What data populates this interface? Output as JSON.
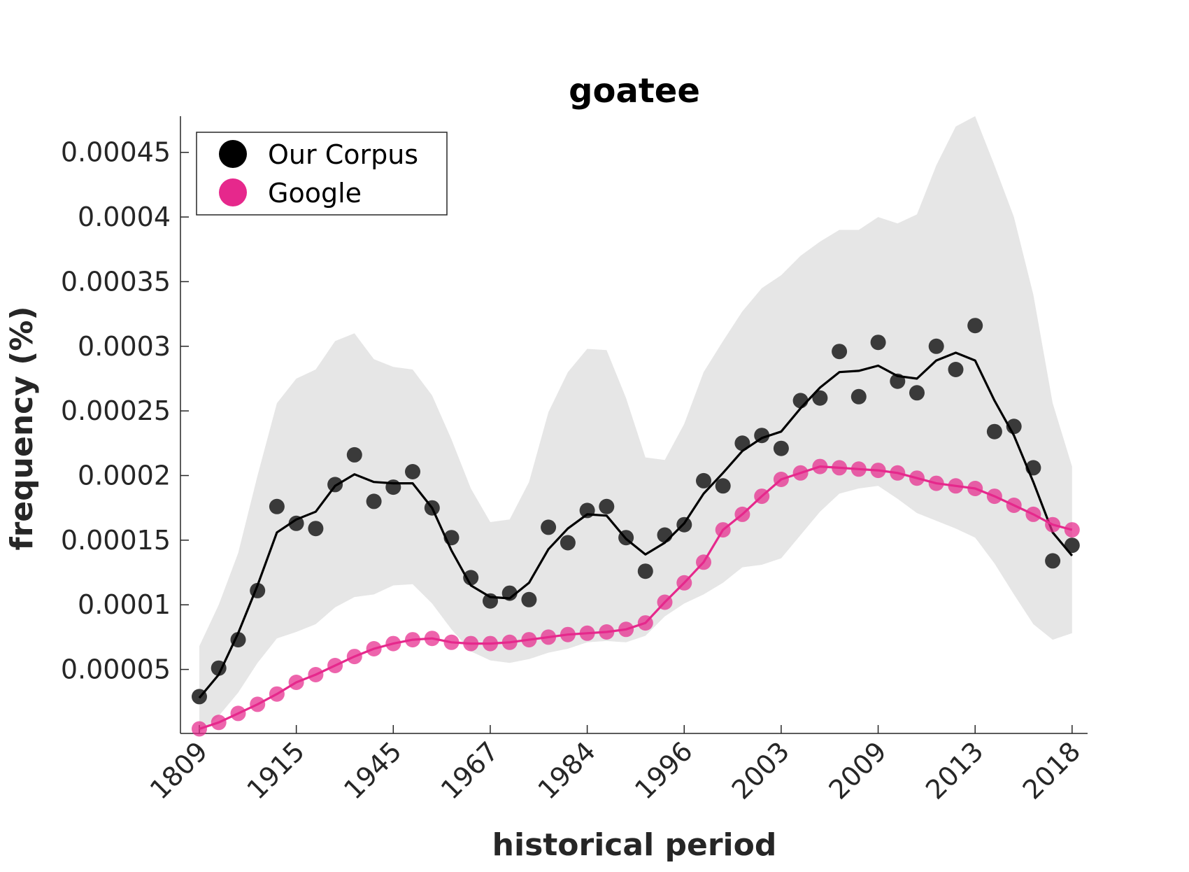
{
  "chart_data": {
    "type": "line",
    "title": "goatee",
    "xlabel": "historical period",
    "ylabel": "frequency (%)",
    "x_tick_labels": [
      "1809",
      "1915",
      "1945",
      "1967",
      "1984",
      "1996",
      "2003",
      "2009",
      "2013",
      "2018"
    ],
    "y_ticks": [
      5e-05,
      0.0001,
      0.00015,
      0.0002,
      0.00025,
      0.0003,
      0.00035,
      0.0004,
      0.00045
    ],
    "y_tick_labels": [
      "0.00005",
      "0.0001",
      "0.00015",
      "0.0002",
      "0.00025",
      "0.0003",
      "0.00035",
      "0.0004",
      "0.00045"
    ],
    "ylim": [
      5e-07,
      0.000478
    ],
    "legend_position": "top-left",
    "grid": false,
    "colors": {
      "corpus": "#3a3a3a",
      "corpus_line": "#000000",
      "google": "#e6288c",
      "band": "#e6e6e6"
    },
    "series": [
      {
        "name": "Our Corpus",
        "style": "markers-with-smoothed-line",
        "points": [
          2.9e-05,
          5.1e-05,
          7.3e-05,
          0.000111,
          0.000176,
          0.000163,
          0.000159,
          0.000193,
          0.000216,
          0.00018,
          0.000191,
          0.000203,
          0.000175,
          0.000152,
          0.000121,
          0.000103,
          0.000109,
          0.000104,
          0.00016,
          0.000148,
          0.000173,
          0.000176,
          0.000152,
          0.000126,
          0.000154,
          0.000162,
          0.000196,
          0.000192,
          0.000225,
          0.000231,
          0.000221,
          0.000258,
          0.00026,
          0.000296,
          0.000261,
          0.000303,
          0.000273,
          0.000264,
          0.0003,
          0.000282,
          0.000316,
          0.000234,
          0.000238,
          0.000206,
          0.000134,
          0.000146
        ],
        "trend": [
          2.8e-05,
          4.6e-05,
          7.8e-05,
          0.000115,
          0.000156,
          0.000166,
          0.000172,
          0.000192,
          0.000201,
          0.000195,
          0.000194,
          0.000194,
          0.000175,
          0.000142,
          0.000115,
          0.000106,
          0.000105,
          0.000117,
          0.000143,
          0.000159,
          0.00017,
          0.000169,
          0.000151,
          0.000139,
          0.000148,
          0.000163,
          0.000186,
          0.000202,
          0.000219,
          0.000229,
          0.000234,
          0.000252,
          0.000268,
          0.00028,
          0.000281,
          0.000285,
          0.000277,
          0.000275,
          0.000289,
          0.000295,
          0.000289,
          0.000258,
          0.000231,
          0.000195,
          0.000156,
          0.000138
        ]
      },
      {
        "name": "Google",
        "style": "markers-with-line",
        "points": [
          4e-06,
          9e-06,
          1.6e-05,
          2.3e-05,
          3.1e-05,
          4e-05,
          4.6e-05,
          5.3e-05,
          6e-05,
          6.6e-05,
          7e-05,
          7.3e-05,
          7.4e-05,
          7.1e-05,
          7e-05,
          7e-05,
          7.1e-05,
          7.3e-05,
          7.5e-05,
          7.7e-05,
          7.8e-05,
          7.9e-05,
          8.1e-05,
          8.6e-05,
          0.000102,
          0.000117,
          0.000133,
          0.000158,
          0.00017,
          0.000184,
          0.000197,
          0.000202,
          0.000207,
          0.000206,
          0.000205,
          0.000204,
          0.000202,
          0.000198,
          0.000194,
          0.000192,
          0.00019,
          0.000184,
          0.000177,
          0.00017,
          0.000162,
          0.000158
        ]
      }
    ],
    "confidence_band": {
      "upper": [
        6.8e-05,
        0.0001,
        0.00014,
        0.0002,
        0.000256,
        0.000275,
        0.000282,
        0.000304,
        0.00031,
        0.00029,
        0.000284,
        0.000282,
        0.000262,
        0.000228,
        0.00019,
        0.000164,
        0.000166,
        0.000195,
        0.000249,
        0.00028,
        0.000298,
        0.000297,
        0.00026,
        0.000214,
        0.000212,
        0.00024,
        0.00028,
        0.000304,
        0.000327,
        0.000345,
        0.000355,
        0.00037,
        0.000381,
        0.00039,
        0.00039,
        0.0004,
        0.000395,
        0.000402,
        0.00044,
        0.00047,
        0.000478,
        0.00044,
        0.0004,
        0.00034,
        0.000256,
        0.000207
      ],
      "lower": [
        1e-06,
        1.4e-05,
        3.2e-05,
        5.5e-05,
        7.4e-05,
        7.9e-05,
        8.5e-05,
        9.8e-05,
        0.000106,
        0.000108,
        0.000115,
        0.000116,
        0.000101,
        8.1e-05,
        6.4e-05,
        5.7e-05,
        5.5e-05,
        5.8e-05,
        6.3e-05,
        6.6e-05,
        7.1e-05,
        7.2e-05,
        7.1e-05,
        7.6e-05,
        9.1e-05,
        0.000101,
        0.000108,
        0.000117,
        0.000129,
        0.000131,
        0.000136,
        0.000154,
        0.000172,
        0.000186,
        0.00019,
        0.000192,
        0.000182,
        0.000171,
        0.000165,
        0.000159,
        0.000152,
        0.000132,
        0.000108,
        8.5e-05,
        7.3e-05,
        7.8e-05
      ]
    }
  }
}
